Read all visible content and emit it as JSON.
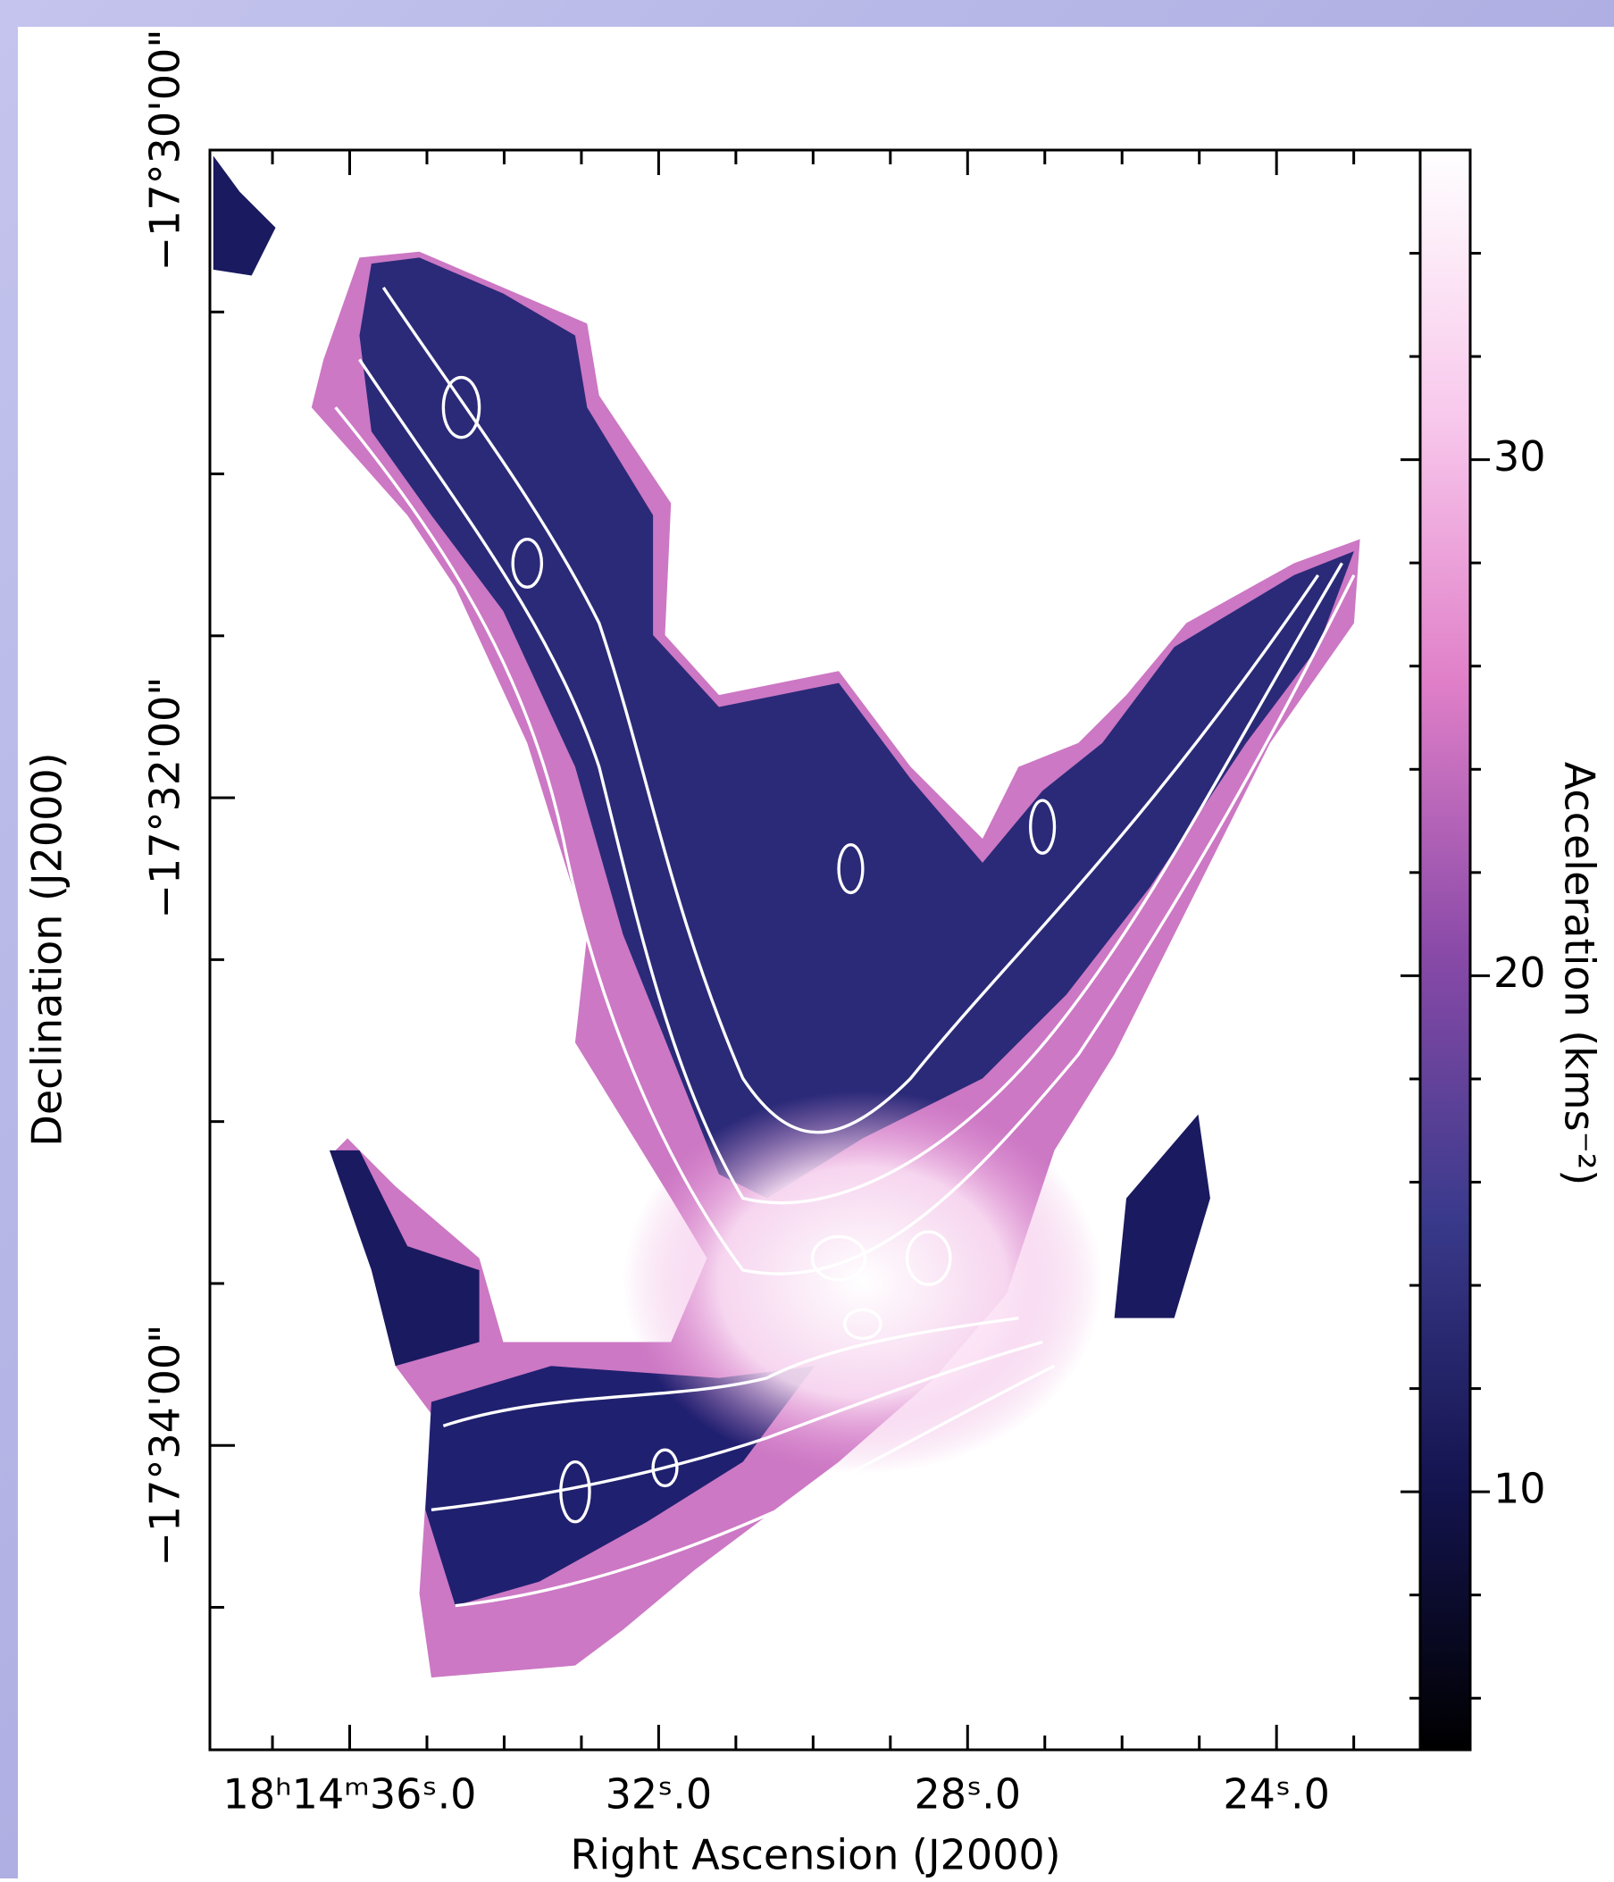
{
  "chart_data": {
    "type": "image",
    "x_label": "Right Ascension (J2000)",
    "y_label": "Declination (J2000)",
    "colorbar_label": "Acceleration (kms⁻²)",
    "xlim": [
      37.81,
      22.14
    ],
    "xticks": [
      {
        "value": 36,
        "label": "18ʰ14ᵐ36ˢ.0"
      },
      {
        "value": 32,
        "label": "32ˢ.0"
      },
      {
        "value": 28,
        "label": "28ˢ.0"
      },
      {
        "value": 24,
        "label": "24ˢ.0"
      }
    ],
    "xminorticks": [
      37,
      35,
      34,
      33,
      31,
      30,
      29,
      27,
      26,
      25,
      23
    ],
    "ylim": [
      -34.94,
      -30
    ],
    "yticks": [
      {
        "value": -30,
        "label": "−17°30'00\""
      },
      {
        "value": -32,
        "label": "−17°32'00\""
      },
      {
        "value": -34,
        "label": "−17°34'00\""
      }
    ],
    "yminorticks": [
      -30.5,
      -31,
      -31.5,
      -32.5,
      -33,
      -33.5,
      -34.5
    ],
    "clim": [
      5,
      36
    ],
    "cticks": [
      10,
      20,
      30
    ],
    "cminorticks": [
      6,
      8,
      12,
      14,
      16,
      18,
      22,
      24,
      26,
      28,
      32,
      34
    ],
    "colormap": [
      "#000000",
      "#141450",
      "#3a3a8c",
      "#8a4aa8",
      "#e07fc8",
      "#f8c8ec",
      "#ffffff"
    ]
  }
}
